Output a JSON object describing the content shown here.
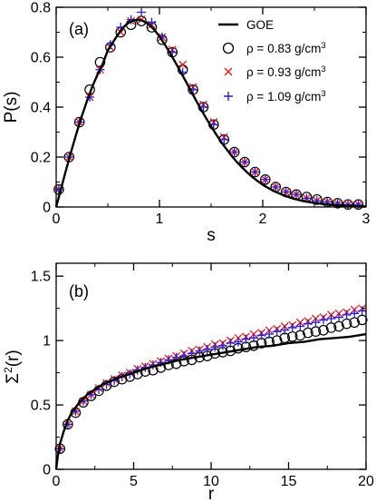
{
  "colors": {
    "goe": "#000000",
    "rho_083": "#000000",
    "rho_093": "#e31a1c",
    "rho_109": "#1f1fe0",
    "axis": "#000000"
  },
  "chart_data": [
    {
      "type": "line",
      "panel": "(a)",
      "xlabel": "s",
      "ylabel": "P(s)",
      "xlim": [
        0,
        3
      ],
      "ylim": [
        0,
        0.8
      ],
      "xticks": [
        0,
        1,
        2,
        3
      ],
      "yticks": [
        0,
        0.2,
        0.4,
        0.6,
        0.8
      ],
      "legend_position": "top-right",
      "grid": false,
      "series": [
        {
          "name": "GOE",
          "marker": "line",
          "x": [
            0,
            0.05,
            0.1,
            0.15,
            0.2,
            0.25,
            0.3,
            0.35,
            0.4,
            0.45,
            0.5,
            0.55,
            0.6,
            0.65,
            0.7,
            0.75,
            0.8,
            0.85,
            0.9,
            0.95,
            1.0,
            1.05,
            1.1,
            1.15,
            1.2,
            1.25,
            1.3,
            1.35,
            1.4,
            1.45,
            1.5,
            1.55,
            1.6,
            1.65,
            1.7,
            1.75,
            1.8,
            1.85,
            1.9,
            1.95,
            2.0,
            2.1,
            2.2,
            2.3,
            2.4,
            2.5,
            2.6,
            2.7,
            2.8,
            2.9,
            3.0
          ],
          "y": [
            0,
            0.078,
            0.155,
            0.229,
            0.3,
            0.366,
            0.427,
            0.482,
            0.53,
            0.572,
            0.628,
            0.66,
            0.692,
            0.72,
            0.738,
            0.748,
            0.75,
            0.744,
            0.73,
            0.71,
            0.683,
            0.652,
            0.618,
            0.582,
            0.545,
            0.507,
            0.468,
            0.43,
            0.393,
            0.357,
            0.323,
            0.29,
            0.259,
            0.231,
            0.204,
            0.18,
            0.158,
            0.138,
            0.12,
            0.104,
            0.089,
            0.065,
            0.047,
            0.033,
            0.023,
            0.016,
            0.011,
            0.007,
            0.005,
            0.003,
            0.002
          ]
        },
        {
          "name": "ρ = 0.83 g/cm3",
          "marker": "circle",
          "x": [
            0.025,
            0.125,
            0.225,
            0.325,
            0.425,
            0.525,
            0.625,
            0.725,
            0.825,
            0.925,
            1.025,
            1.125,
            1.225,
            1.325,
            1.425,
            1.525,
            1.625,
            1.725,
            1.825,
            1.925,
            2.025,
            2.125,
            2.225,
            2.325,
            2.425,
            2.525,
            2.625,
            2.725,
            2.825,
            2.925
          ],
          "y": [
            0.07,
            0.2,
            0.34,
            0.47,
            0.58,
            0.64,
            0.7,
            0.73,
            0.745,
            0.72,
            0.67,
            0.62,
            0.55,
            0.47,
            0.4,
            0.33,
            0.27,
            0.22,
            0.18,
            0.14,
            0.11,
            0.08,
            0.06,
            0.05,
            0.04,
            0.03,
            0.02,
            0.015,
            0.01,
            0.01
          ]
        },
        {
          "name": "ρ = 0.93 g/cm3",
          "marker": "x",
          "x": [
            0.025,
            0.125,
            0.225,
            0.325,
            0.425,
            0.525,
            0.625,
            0.725,
            0.825,
            0.925,
            1.025,
            1.125,
            1.225,
            1.325,
            1.425,
            1.525,
            1.625,
            1.725,
            1.825,
            1.925,
            2.025,
            2.125,
            2.225,
            2.325,
            2.425,
            2.525,
            2.625,
            2.725,
            2.825,
            2.925
          ],
          "y": [
            0.07,
            0.2,
            0.34,
            0.44,
            0.55,
            0.64,
            0.7,
            0.745,
            0.75,
            0.73,
            0.68,
            0.63,
            0.57,
            0.48,
            0.41,
            0.34,
            0.28,
            0.22,
            0.18,
            0.14,
            0.11,
            0.08,
            0.06,
            0.05,
            0.035,
            0.025,
            0.02,
            0.015,
            0.01,
            0.01
          ]
        },
        {
          "name": "ρ = 1.09 g/cm3",
          "marker": "plus",
          "x": [
            0.025,
            0.125,
            0.225,
            0.325,
            0.425,
            0.525,
            0.625,
            0.725,
            0.825,
            0.925,
            1.025,
            1.125,
            1.225,
            1.325,
            1.425,
            1.525,
            1.625,
            1.725,
            1.825,
            1.925,
            2.025,
            2.125,
            2.225,
            2.325,
            2.425,
            2.525,
            2.625,
            2.725,
            2.825,
            2.925
          ],
          "y": [
            0.07,
            0.2,
            0.34,
            0.44,
            0.55,
            0.65,
            0.72,
            0.75,
            0.78,
            0.74,
            0.68,
            0.62,
            0.54,
            0.47,
            0.4,
            0.33,
            0.27,
            0.22,
            0.18,
            0.14,
            0.11,
            0.08,
            0.06,
            0.05,
            0.035,
            0.025,
            0.02,
            0.015,
            0.01,
            0.01
          ]
        }
      ]
    },
    {
      "type": "line",
      "panel": "(b)",
      "xlabel": "r",
      "ylabel": "Σ2(r)",
      "xlim": [
        0,
        20
      ],
      "ylim": [
        0,
        1.6
      ],
      "xticks": [
        0,
        5,
        10,
        15,
        20
      ],
      "yticks": [
        0,
        0.5,
        1,
        1.5
      ],
      "grid": false,
      "series": [
        {
          "name": "GOE",
          "marker": "line",
          "x": [
            0,
            0.1,
            0.25,
            0.5,
            0.75,
            1,
            1.5,
            2,
            2.5,
            3,
            4,
            5,
            6,
            7,
            8,
            9,
            10,
            11,
            12,
            13,
            14,
            15,
            16,
            17,
            18,
            19,
            20
          ],
          "y": [
            0,
            0.1,
            0.2,
            0.3,
            0.38,
            0.44,
            0.52,
            0.58,
            0.62,
            0.66,
            0.71,
            0.75,
            0.79,
            0.82,
            0.85,
            0.87,
            0.89,
            0.91,
            0.93,
            0.95,
            0.96,
            0.98,
            0.99,
            1.01,
            1.02,
            1.03,
            1.05
          ]
        },
        {
          "name": "ρ = 0.83 g/cm3",
          "marker": "circle",
          "x": [
            0.25,
            0.75,
            1.25,
            1.75,
            2.25,
            2.75,
            3.25,
            3.75,
            4.25,
            4.75,
            5.25,
            5.75,
            6.25,
            6.75,
            7.25,
            7.75,
            8.25,
            8.75,
            9.25,
            9.75,
            10.25,
            10.75,
            11.25,
            11.75,
            12.25,
            12.75,
            13.25,
            13.75,
            14.25,
            14.75,
            15.25,
            15.75,
            16.25,
            16.75,
            17.25,
            17.75,
            18.25,
            18.75,
            19.25,
            19.75
          ],
          "y": [
            0.16,
            0.35,
            0.44,
            0.52,
            0.57,
            0.61,
            0.65,
            0.68,
            0.7,
            0.72,
            0.74,
            0.76,
            0.77,
            0.79,
            0.81,
            0.82,
            0.84,
            0.85,
            0.87,
            0.88,
            0.9,
            0.91,
            0.92,
            0.94,
            0.95,
            0.96,
            0.98,
            0.99,
            1.0,
            1.02,
            1.03,
            1.04,
            1.06,
            1.07,
            1.08,
            1.1,
            1.11,
            1.13,
            1.14,
            1.16
          ]
        },
        {
          "name": "ρ = 0.93 g/cm3",
          "marker": "x",
          "x": [
            0.25,
            0.75,
            1.25,
            1.75,
            2.25,
            2.75,
            3.25,
            3.75,
            4.25,
            4.75,
            5.25,
            5.75,
            6.25,
            6.75,
            7.25,
            7.75,
            8.25,
            8.75,
            9.25,
            9.75,
            10.25,
            10.75,
            11.25,
            11.75,
            12.25,
            12.75,
            13.25,
            13.75,
            14.25,
            14.75,
            15.25,
            15.75,
            16.25,
            16.75,
            17.25,
            17.75,
            18.25,
            18.75,
            19.25,
            19.75
          ],
          "y": [
            0.16,
            0.35,
            0.45,
            0.53,
            0.58,
            0.63,
            0.67,
            0.7,
            0.73,
            0.75,
            0.78,
            0.8,
            0.82,
            0.84,
            0.86,
            0.88,
            0.9,
            0.92,
            0.93,
            0.95,
            0.97,
            0.98,
            1.0,
            1.02,
            1.03,
            1.05,
            1.06,
            1.08,
            1.09,
            1.11,
            1.12,
            1.14,
            1.15,
            1.17,
            1.18,
            1.2,
            1.21,
            1.22,
            1.24,
            1.25
          ]
        },
        {
          "name": "ρ = 1.09 g/cm3",
          "marker": "plus",
          "x": [
            0.25,
            0.75,
            1.25,
            1.75,
            2.25,
            2.75,
            3.25,
            3.75,
            4.25,
            4.75,
            5.25,
            5.75,
            6.25,
            6.75,
            7.25,
            7.75,
            8.25,
            8.75,
            9.25,
            9.75,
            10.25,
            10.75,
            11.25,
            11.75,
            12.25,
            12.75,
            13.25,
            13.75,
            14.25,
            14.75,
            15.25,
            15.75,
            16.25,
            16.75,
            17.25,
            17.75,
            18.25,
            18.75,
            19.25,
            19.75
          ],
          "y": [
            0.16,
            0.35,
            0.45,
            0.53,
            0.58,
            0.62,
            0.66,
            0.69,
            0.72,
            0.74,
            0.77,
            0.79,
            0.81,
            0.83,
            0.85,
            0.87,
            0.88,
            0.9,
            0.92,
            0.93,
            0.95,
            0.96,
            0.98,
            0.99,
            1.01,
            1.02,
            1.04,
            1.05,
            1.07,
            1.08,
            1.1,
            1.11,
            1.13,
            1.14,
            1.16,
            1.17,
            1.18,
            1.2,
            1.21,
            1.23
          ]
        }
      ]
    }
  ]
}
